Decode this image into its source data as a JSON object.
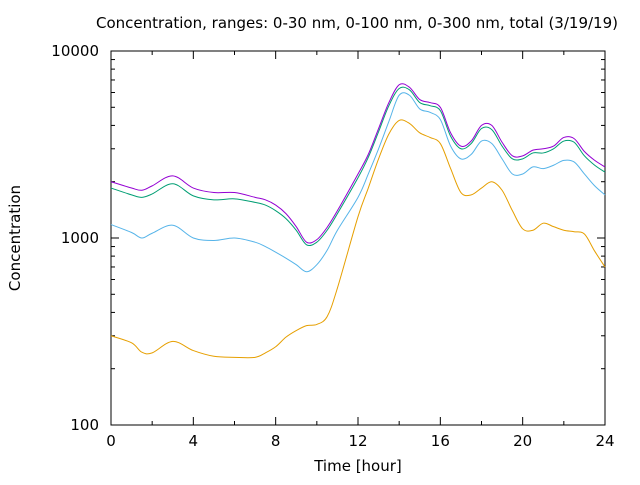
{
  "chart_data": {
    "type": "line",
    "title": "Concentration, ranges: 0-30 nm, 0-100 nm, 0-300 nm, total (3/19/19)",
    "xlabel": "Time [hour]",
    "ylabel": "Concentration",
    "xlim": [
      0,
      24
    ],
    "ylim": [
      100,
      10000
    ],
    "yscale": "log",
    "grid": false,
    "x_ticks": [
      0,
      4,
      8,
      12,
      16,
      20,
      24
    ],
    "x_tick_labels": [
      "0",
      "4",
      "8",
      "12",
      "16",
      "20",
      "24"
    ],
    "y_major_ticks": [
      100,
      1000,
      10000
    ],
    "y_tick_labels": [
      "100",
      "1000",
      "10000"
    ],
    "series": [
      {
        "color": "#e69f00",
        "x": [
          0,
          1,
          1.5,
          2,
          3,
          4,
          5,
          6,
          7,
          7.5,
          8,
          8.5,
          9,
          9.5,
          10,
          10.5,
          11,
          12,
          12.5,
          13,
          13.5,
          14,
          14.5,
          15,
          15.5,
          16,
          16.5,
          17,
          17.5,
          18,
          18.5,
          19,
          19.5,
          20,
          20.5,
          21,
          21.5,
          22,
          22.5,
          23,
          23.5,
          24
        ],
        "y": [
          300,
          275,
          245,
          243,
          280,
          250,
          233,
          230,
          230,
          243,
          262,
          295,
          320,
          340,
          345,
          380,
          540,
          1300,
          1850,
          2650,
          3600,
          4250,
          4100,
          3650,
          3450,
          3200,
          2350,
          1750,
          1700,
          1850,
          2000,
          1800,
          1400,
          1120,
          1100,
          1200,
          1150,
          1100,
          1080,
          1050,
          850,
          700
        ]
      },
      {
        "color": "#56b4e9",
        "x": [
          0,
          1,
          1.5,
          2,
          3,
          4,
          5,
          6,
          7,
          7.5,
          8,
          8.5,
          9,
          9.5,
          10,
          10.5,
          11,
          12,
          12.5,
          13,
          13.5,
          14,
          14.5,
          15,
          15.5,
          16,
          16.5,
          17,
          17.5,
          18,
          18.5,
          19,
          19.5,
          20,
          20.5,
          21,
          21.5,
          22,
          22.5,
          23,
          23.5,
          24
        ],
        "y": [
          1180,
          1070,
          1000,
          1060,
          1170,
          1000,
          970,
          1000,
          950,
          900,
          840,
          780,
          720,
          660,
          720,
          860,
          1100,
          1650,
          2200,
          3000,
          4200,
          5800,
          5800,
          4900,
          4700,
          4300,
          3100,
          2650,
          2800,
          3300,
          3200,
          2650,
          2200,
          2200,
          2400,
          2350,
          2450,
          2600,
          2550,
          2200,
          1900,
          1700
        ]
      },
      {
        "color": "#009e73",
        "x": [
          0,
          1,
          1.5,
          2,
          3,
          4,
          5,
          6,
          7,
          7.5,
          8,
          8.5,
          9,
          9.5,
          10,
          10.5,
          11,
          12,
          12.5,
          13,
          13.5,
          14,
          14.5,
          15,
          15.5,
          16,
          16.5,
          17,
          17.5,
          18,
          18.5,
          19,
          19.5,
          20,
          20.5,
          21,
          21.5,
          22,
          22.5,
          23,
          23.5,
          24
        ],
        "y": [
          1850,
          1700,
          1650,
          1720,
          1950,
          1680,
          1600,
          1620,
          1550,
          1500,
          1400,
          1270,
          1100,
          920,
          950,
          1100,
          1350,
          2100,
          2700,
          3700,
          5100,
          6300,
          6200,
          5300,
          5100,
          4800,
          3500,
          3000,
          3200,
          3850,
          3800,
          3100,
          2650,
          2650,
          2850,
          2850,
          3000,
          3300,
          3250,
          2750,
          2450,
          2250
        ]
      },
      {
        "color": "#9400d3",
        "x": [
          0,
          1,
          1.5,
          2,
          3,
          4,
          5,
          6,
          7,
          7.5,
          8,
          8.5,
          9,
          9.5,
          10,
          10.5,
          11,
          12,
          12.5,
          13,
          13.5,
          14,
          14.5,
          15,
          15.5,
          16,
          16.5,
          17,
          17.5,
          18,
          18.5,
          19,
          19.5,
          20,
          20.5,
          21,
          21.5,
          22,
          22.5,
          23,
          23.5,
          24
        ],
        "y": [
          2000,
          1850,
          1800,
          1900,
          2150,
          1850,
          1750,
          1750,
          1650,
          1600,
          1500,
          1350,
          1150,
          950,
          980,
          1140,
          1400,
          2200,
          2800,
          3850,
          5300,
          6600,
          6400,
          5500,
          5300,
          5000,
          3650,
          3100,
          3300,
          4000,
          4000,
          3250,
          2750,
          2750,
          2950,
          3000,
          3100,
          3450,
          3400,
          2900,
          2600,
          2400
        ]
      }
    ]
  }
}
